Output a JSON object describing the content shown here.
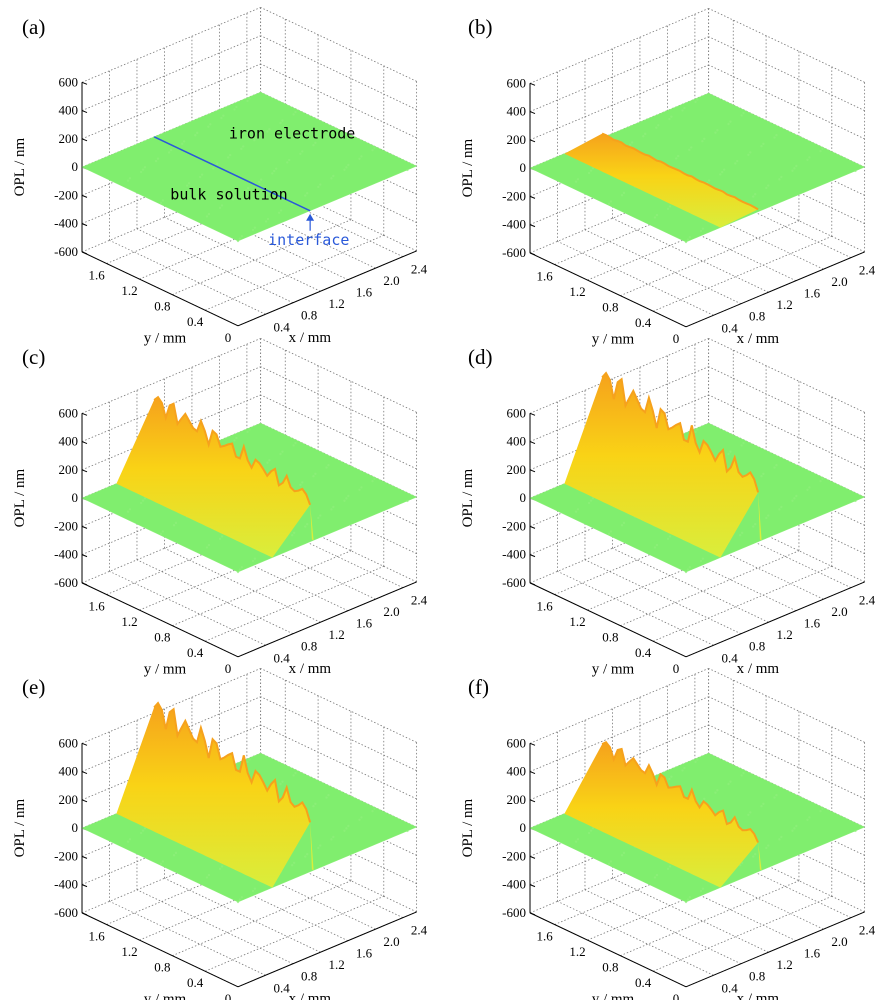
{
  "figure": {
    "description_free": true
  },
  "colors": {
    "surface": "#80ee6e",
    "surface_alt": "#8ff07a",
    "ridge_high": "#f6a21c",
    "ridge_mid": "#f9d316",
    "ridge_low": "#d9ee3c",
    "interface_line": "#2a59d9",
    "interface_text": "#2a59d9",
    "grid": "#777777"
  },
  "chart_data": [
    {
      "panel": "(a)",
      "type": "surface3d",
      "zlabel": "OPL / nm",
      "xlabel": "x / mm",
      "ylabel": "y / mm",
      "zticks": [
        "600",
        "400",
        "200",
        "0",
        "-200",
        "-400",
        "-600"
      ],
      "xticks": [
        "0.4",
        "0.8",
        "1.2",
        "1.6",
        "2.0",
        "2.4"
      ],
      "yticks": [
        "1.6",
        "1.2",
        "0.8",
        "0.4",
        "0"
      ],
      "zlim": [
        -600,
        600
      ],
      "xlim": [
        0,
        2.6
      ],
      "ylim": [
        0,
        1.9
      ],
      "ridge_peak_nm": 0,
      "annotations": [
        "iron electrode",
        "bulk solution",
        "interface"
      ]
    },
    {
      "panel": "(b)",
      "type": "surface3d",
      "zlabel": "OPL / nm",
      "xlabel": "x / mm",
      "ylabel": "y / mm",
      "zticks": [
        "600",
        "400",
        "200",
        "0",
        "-200",
        "-400",
        "-600"
      ],
      "xticks": [
        "0.4",
        "0.8",
        "1.2",
        "1.6",
        "2.0",
        "2.4"
      ],
      "yticks": [
        "1.6",
        "1.2",
        "0.8",
        "0.4",
        "0"
      ],
      "zlim": [
        -600,
        600
      ],
      "xlim": [
        0,
        2.6
      ],
      "ylim": [
        0,
        1.9
      ],
      "ridge_peak_nm": 30
    },
    {
      "panel": "(c)",
      "type": "surface3d",
      "zlabel": "OPL / nm",
      "xlabel": "x / mm",
      "ylabel": "y / mm",
      "zticks": [
        "600",
        "400",
        "200",
        "0",
        "-200",
        "-400",
        "-600"
      ],
      "xticks": [
        "0.4",
        "0.8",
        "1.2",
        "1.6",
        "2.0",
        "2.4"
      ],
      "yticks": [
        "1.6",
        "1.2",
        "0.8",
        "0.4",
        "0"
      ],
      "zlim": [
        -600,
        600
      ],
      "xlim": [
        0,
        2.6
      ],
      "ylim": [
        0,
        1.9
      ],
      "ridge_peak_nm": 480
    },
    {
      "panel": "(d)",
      "type": "surface3d",
      "zlabel": "OPL / nm",
      "xlabel": "x / mm",
      "ylabel": "y / mm",
      "zticks": [
        "600",
        "400",
        "200",
        "0",
        "-200",
        "-400",
        "-600"
      ],
      "xticks": [
        "0.4",
        "0.8",
        "1.2",
        "1.6",
        "2.0",
        "2.4"
      ],
      "yticks": [
        "1.6",
        "1.2",
        "0.8",
        "0.4",
        "0"
      ],
      "zlim": [
        -600,
        600
      ],
      "xlim": [
        0,
        2.6
      ],
      "ylim": [
        0,
        1.9
      ],
      "ridge_peak_nm": 640
    },
    {
      "panel": "(e)",
      "type": "surface3d",
      "zlabel": "OPL / nm",
      "xlabel": "x / mm",
      "ylabel": "y / mm",
      "zticks": [
        "600",
        "400",
        "200",
        "0",
        "-200",
        "-400",
        "-600"
      ],
      "xticks": [
        "0.4",
        "0.8",
        "1.2",
        "1.6",
        "2.0",
        "2.4"
      ],
      "yticks": [
        "1.6",
        "1.2",
        "0.8",
        "0.4",
        "0"
      ],
      "zlim": [
        -600,
        600
      ],
      "xlim": [
        0,
        2.6
      ],
      "ylim": [
        0,
        1.9
      ],
      "ridge_peak_nm": 640
    },
    {
      "panel": "(f)",
      "type": "surface3d",
      "zlabel": "OPL / nm",
      "xlabel": "x / mm",
      "ylabel": "y / mm",
      "zticks": [
        "600",
        "400",
        "200",
        "0",
        "-200",
        "-400",
        "-600"
      ],
      "xticks": [
        "0.4",
        "0.8",
        "1.2",
        "1.6",
        "2.0",
        "2.4"
      ],
      "yticks": [
        "1.6",
        "1.2",
        "0.8",
        "0.4",
        "0"
      ],
      "zlim": [
        -600,
        600
      ],
      "xlim": [
        0,
        2.6
      ],
      "ylim": [
        0,
        1.9
      ],
      "ridge_peak_nm": 380
    }
  ]
}
